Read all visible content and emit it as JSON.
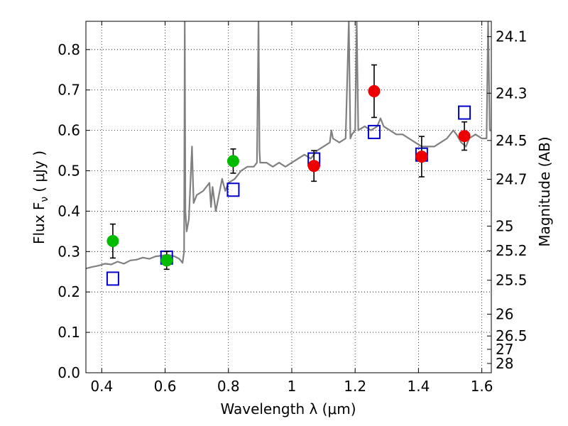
{
  "chart_data": {
    "type": "scatter",
    "xlabel": "Wavelength  λ (μm)",
    "ylabel": "Flux  F",
    "ylabel_sub": "ν",
    "ylabel_unit": "( μJy )",
    "y2label": "Magnitude (AB)",
    "xlim": [
      0.35,
      1.63
    ],
    "ylim": [
      0.0,
      0.87
    ],
    "grid": true,
    "xticks": [
      0.4,
      0.6,
      0.8,
      1.0,
      1.2,
      1.4,
      1.6
    ],
    "xtick_labels": [
      "0.4",
      "0.6",
      "0.8",
      "1",
      "1.2",
      "1.4",
      "1.6"
    ],
    "yticks": [
      0.0,
      0.1,
      0.2,
      0.3,
      0.4,
      0.5,
      0.6,
      0.7,
      0.8
    ],
    "ytick_labels": [
      "0.0",
      "0.1",
      "0.2",
      "0.3",
      "0.4",
      "0.5",
      "0.6",
      "0.7",
      "0.8"
    ],
    "y2ticks": [
      {
        "label": "24.1",
        "flux": 0.832
      },
      {
        "label": "24.3",
        "flux": 0.692
      },
      {
        "label": "24.5",
        "flux": 0.575
      },
      {
        "label": "24.7",
        "flux": 0.479
      },
      {
        "label": "25",
        "flux": 0.363
      },
      {
        "label": "25.2",
        "flux": 0.302
      },
      {
        "label": "25.5",
        "flux": 0.229
      },
      {
        "label": "26",
        "flux": 0.145
      },
      {
        "label": "26.5",
        "flux": 0.091
      },
      {
        "label": "27",
        "flux": 0.058
      },
      {
        "label": "28",
        "flux": 0.023
      }
    ],
    "series": [
      {
        "kind": "spectrum",
        "color": "#808080",
        "points": [
          [
            0.35,
            0.258
          ],
          [
            0.37,
            0.262
          ],
          [
            0.39,
            0.265
          ],
          [
            0.41,
            0.27
          ],
          [
            0.43,
            0.268
          ],
          [
            0.45,
            0.275
          ],
          [
            0.47,
            0.27
          ],
          [
            0.49,
            0.278
          ],
          [
            0.51,
            0.28
          ],
          [
            0.53,
            0.285
          ],
          [
            0.55,
            0.282
          ],
          [
            0.57,
            0.288
          ],
          [
            0.59,
            0.29
          ],
          [
            0.61,
            0.292
          ],
          [
            0.63,
            0.288
          ],
          [
            0.645,
            0.282
          ],
          [
            0.655,
            0.272
          ],
          [
            0.66,
            0.3
          ],
          [
            0.662,
            0.87
          ],
          [
            0.664,
            0.4
          ],
          [
            0.668,
            0.35
          ],
          [
            0.675,
            0.38
          ],
          [
            0.685,
            0.56
          ],
          [
            0.69,
            0.42
          ],
          [
            0.7,
            0.44
          ],
          [
            0.72,
            0.45
          ],
          [
            0.74,
            0.47
          ],
          [
            0.745,
            0.41
          ],
          [
            0.75,
            0.46
          ],
          [
            0.76,
            0.4
          ],
          [
            0.77,
            0.44
          ],
          [
            0.78,
            0.48
          ],
          [
            0.79,
            0.45
          ],
          [
            0.8,
            0.47
          ],
          [
            0.82,
            0.48
          ],
          [
            0.84,
            0.5
          ],
          [
            0.86,
            0.51
          ],
          [
            0.88,
            0.51
          ],
          [
            0.89,
            0.52
          ],
          [
            0.895,
            0.87
          ],
          [
            0.898,
            0.55
          ],
          [
            0.9,
            0.52
          ],
          [
            0.92,
            0.52
          ],
          [
            0.94,
            0.51
          ],
          [
            0.96,
            0.52
          ],
          [
            0.98,
            0.51
          ],
          [
            1.0,
            0.52
          ],
          [
            1.02,
            0.53
          ],
          [
            1.04,
            0.54
          ],
          [
            1.06,
            0.53
          ],
          [
            1.08,
            0.55
          ],
          [
            1.1,
            0.56
          ],
          [
            1.12,
            0.57
          ],
          [
            1.125,
            0.6
          ],
          [
            1.13,
            0.58
          ],
          [
            1.15,
            0.57
          ],
          [
            1.17,
            0.58
          ],
          [
            1.18,
            0.87
          ],
          [
            1.185,
            0.58
          ],
          [
            1.19,
            0.59
          ],
          [
            1.2,
            0.6
          ],
          [
            1.205,
            0.87
          ],
          [
            1.21,
            0.6
          ],
          [
            1.23,
            0.61
          ],
          [
            1.25,
            0.6
          ],
          [
            1.27,
            0.61
          ],
          [
            1.28,
            0.63
          ],
          [
            1.29,
            0.61
          ],
          [
            1.31,
            0.6
          ],
          [
            1.33,
            0.59
          ],
          [
            1.35,
            0.59
          ],
          [
            1.37,
            0.58
          ],
          [
            1.39,
            0.57
          ],
          [
            1.41,
            0.56
          ],
          [
            1.43,
            0.56
          ],
          [
            1.45,
            0.56
          ],
          [
            1.47,
            0.57
          ],
          [
            1.49,
            0.58
          ],
          [
            1.51,
            0.6
          ],
          [
            1.52,
            0.59
          ],
          [
            1.535,
            0.57
          ],
          [
            1.55,
            0.56
          ],
          [
            1.56,
            0.58
          ],
          [
            1.58,
            0.59
          ],
          [
            1.6,
            0.58
          ],
          [
            1.615,
            0.58
          ],
          [
            1.62,
            0.87
          ],
          [
            1.625,
            0.6
          ],
          [
            1.63,
            0.6
          ]
        ]
      },
      {
        "kind": "model",
        "marker": "open-square",
        "color": "#0000cc",
        "points": [
          [
            0.435,
            0.233
          ],
          [
            0.605,
            0.285
          ],
          [
            0.815,
            0.453
          ],
          [
            1.07,
            0.528
          ],
          [
            1.26,
            0.596
          ],
          [
            1.41,
            0.54
          ],
          [
            1.545,
            0.644
          ]
        ]
      },
      {
        "kind": "observed",
        "marker": "circle",
        "color": "#00bb00",
        "points": [
          {
            "x": 0.435,
            "y": 0.326,
            "yerr": 0.042
          },
          {
            "x": 0.605,
            "y": 0.278,
            "yerr": 0.022
          },
          {
            "x": 0.815,
            "y": 0.524,
            "yerr": 0.03
          }
        ]
      },
      {
        "kind": "observed",
        "marker": "circle",
        "color": "#ee0000",
        "points": [
          {
            "x": 1.07,
            "y": 0.512,
            "yerr": 0.038
          },
          {
            "x": 1.26,
            "y": 0.697,
            "yerr": 0.065
          },
          {
            "x": 1.41,
            "y": 0.535,
            "yerr": 0.05
          },
          {
            "x": 1.545,
            "y": 0.586,
            "yerr": 0.035
          }
        ]
      }
    ]
  }
}
